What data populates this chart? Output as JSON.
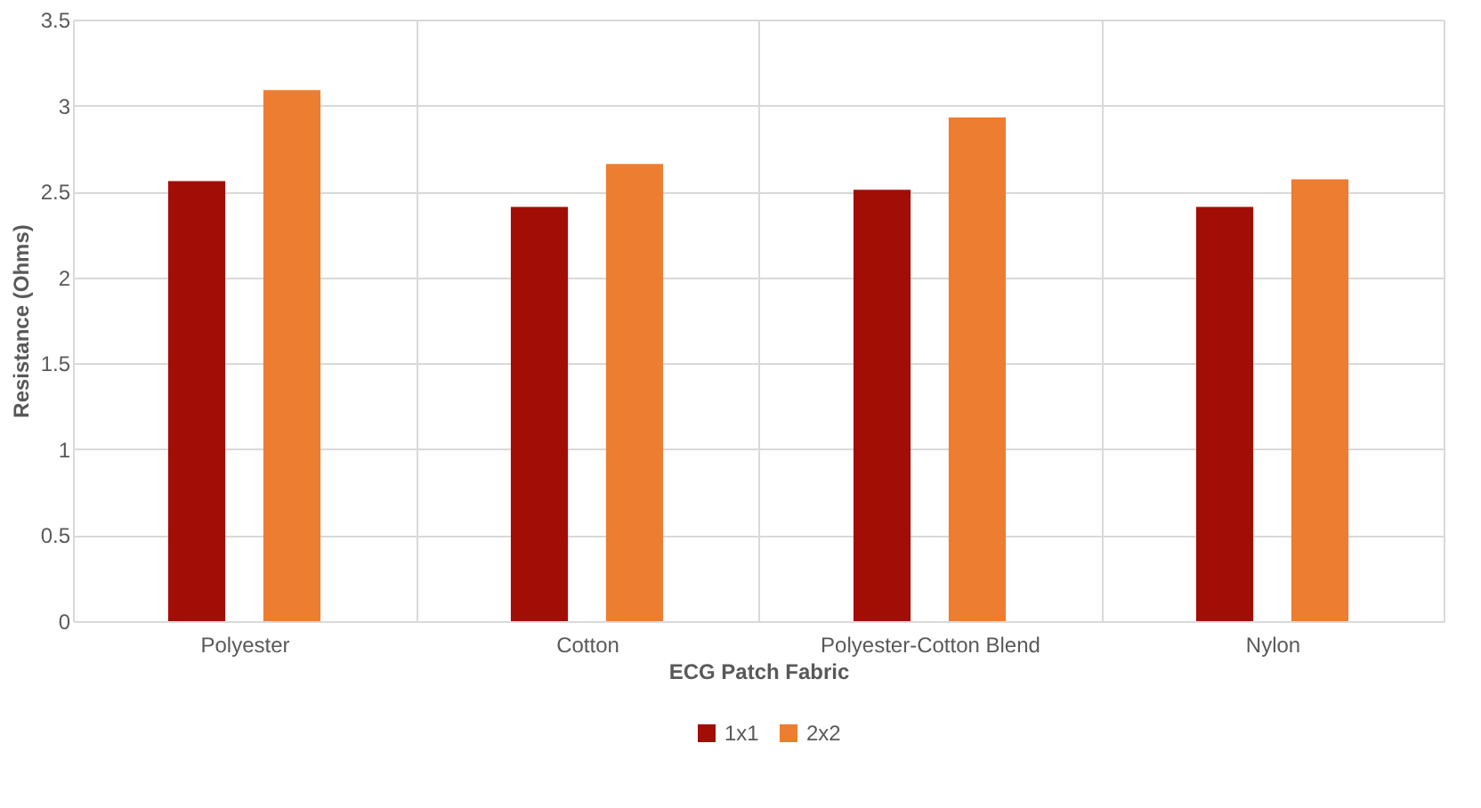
{
  "chart_data": {
    "type": "bar",
    "xlabel": "ECG Patch Fabric",
    "ylabel": "Resistance (Ohms)",
    "categories": [
      "Polyester",
      "Cotton",
      "Polyester-Cotton Blend",
      "Nylon"
    ],
    "series": [
      {
        "name": "1x1",
        "color": "#a20e06",
        "values": [
          2.56,
          2.41,
          2.51,
          2.41
        ]
      },
      {
        "name": "2x2",
        "color": "#ed7d31",
        "values": [
          3.09,
          2.66,
          2.93,
          2.57
        ]
      }
    ],
    "ylim": [
      0,
      3.5
    ],
    "yticks": [
      0,
      0.5,
      1,
      1.5,
      2,
      2.5,
      3,
      3.5
    ],
    "grid": true,
    "legend": "bottom"
  }
}
